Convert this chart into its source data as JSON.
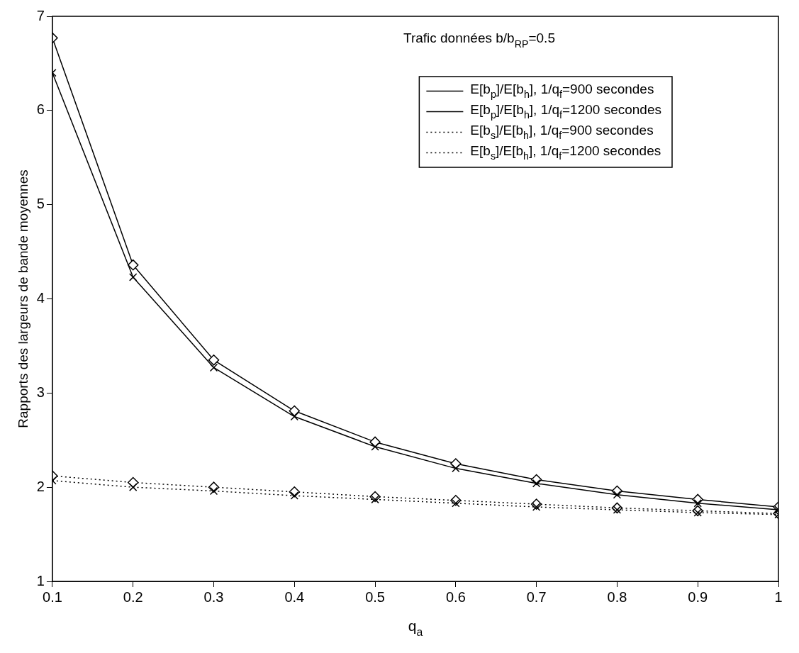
{
  "chart_data": {
    "type": "line",
    "annotations": [
      "Trafic données b/b$_{RP}$=0.5"
    ],
    "xlabel": "q$_{a}$",
    "ylabel": "Rapports des largeurs de bande moyennes",
    "x": [
      0.1,
      0.2,
      0.3,
      0.4,
      0.5,
      0.6,
      0.7,
      0.8,
      0.9,
      1
    ],
    "xlim": [
      0.1,
      1
    ],
    "xticks": [
      0.1,
      0.2,
      0.3,
      0.4,
      0.5,
      0.6,
      0.7,
      0.8,
      0.9,
      1
    ],
    "ylim": [
      1,
      7
    ],
    "yticks": [
      1,
      2,
      3,
      4,
      5,
      6,
      7
    ],
    "grid": false,
    "legend": "top right",
    "series": [
      {
        "name": "E[b$_{p}$]/E[b$_{h}$], 1/q$_{f}$=900 secondes",
        "color": "#000000",
        "marker": "cross",
        "line_style": "solid",
        "values": [
          6.4,
          4.23,
          3.27,
          2.75,
          2.43,
          2.2,
          2.04,
          1.92,
          1.83,
          1.76
        ]
      },
      {
        "name": "E[b$_{p}$]/E[b$_{h}$], 1/q$_{f}$=1200 secondes",
        "color": "#000000",
        "marker": "diamond",
        "line_style": "solid",
        "values": [
          6.77,
          4.36,
          3.35,
          2.81,
          2.48,
          2.25,
          2.08,
          1.96,
          1.87,
          1.79
        ]
      },
      {
        "name": "E[b$_{s}$]/E[b$_{h}$], 1/q$_{f}$=900 secondes",
        "color": "#000000",
        "marker": "cross",
        "line_style": "dotted",
        "values": [
          2.07,
          2.0,
          1.96,
          1.91,
          1.87,
          1.83,
          1.79,
          1.76,
          1.73,
          1.71
        ]
      },
      {
        "name": "E[b$_{s}$]/E[b$_{h}$], 1/q$_{f}$=1200 secondes",
        "color": "#000000",
        "marker": "diamond",
        "line_style": "dotted",
        "values": [
          2.12,
          2.05,
          2.0,
          1.95,
          1.9,
          1.86,
          1.82,
          1.78,
          1.75,
          1.72
        ]
      }
    ]
  }
}
